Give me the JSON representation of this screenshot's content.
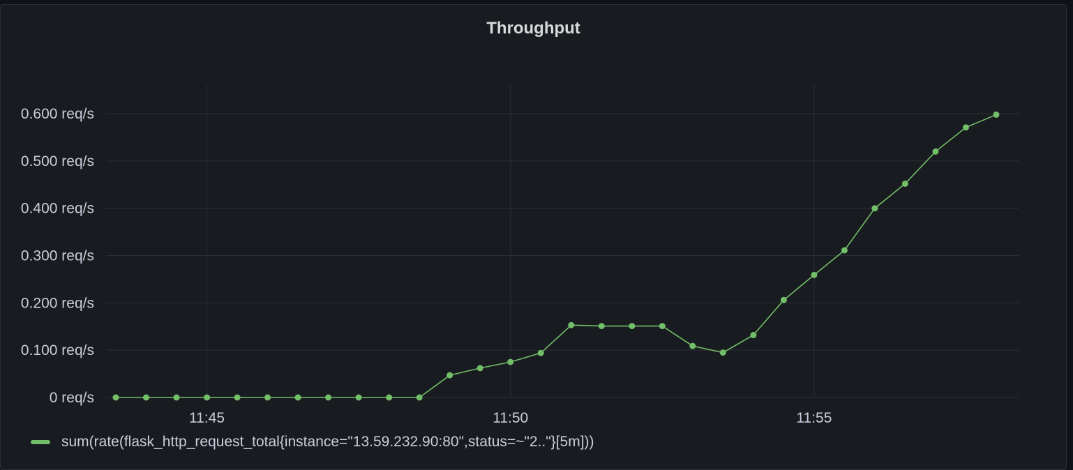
{
  "panel": {
    "title": "Throughput"
  },
  "colors": {
    "series": "#73bf69",
    "grid": "#2c2f35",
    "background": "#181b1f",
    "text": "#ccccdc"
  },
  "chart_data": {
    "type": "line",
    "title": "Throughput",
    "xlabel": "",
    "ylabel": "",
    "unit": "req/s",
    "ylim": [
      0,
      0.6
    ],
    "y_ticks": [
      "0 req/s",
      "0.100 req/s",
      "0.200 req/s",
      "0.300 req/s",
      "0.400 req/s",
      "0.500 req/s",
      "0.600 req/s"
    ],
    "x_ticks": [
      "11:45",
      "11:50",
      "11:55"
    ],
    "x_range": [
      "11:43:30",
      "11:58:30"
    ],
    "grid": true,
    "legend_position": "bottom-left",
    "series": [
      {
        "name": "sum(rate(flask_http_request_total{instance=\"13.59.232.90:80\",status=~\"2..\"}[5m]))",
        "x": [
          "11:43:30",
          "11:44:00",
          "11:44:30",
          "11:45:00",
          "11:45:30",
          "11:46:00",
          "11:46:30",
          "11:47:00",
          "11:47:30",
          "11:48:00",
          "11:48:30",
          "11:49:00",
          "11:49:30",
          "11:50:00",
          "11:50:30",
          "11:51:00",
          "11:51:30",
          "11:52:00",
          "11:52:30",
          "11:53:00",
          "11:53:30",
          "11:54:00",
          "11:54:30",
          "11:55:00",
          "11:55:30",
          "11:56:00",
          "11:56:30",
          "11:57:00",
          "11:57:30",
          "11:58:00"
        ],
        "values": [
          0,
          0,
          0,
          0,
          0,
          0,
          0,
          0,
          0,
          0,
          0,
          0.047,
          0.062,
          0.075,
          0.094,
          0.153,
          0.151,
          0.151,
          0.151,
          0.109,
          0.095,
          0.132,
          0.206,
          0.259,
          0.311,
          0.4,
          0.452,
          0.52,
          0.571,
          0.598
        ]
      }
    ]
  }
}
